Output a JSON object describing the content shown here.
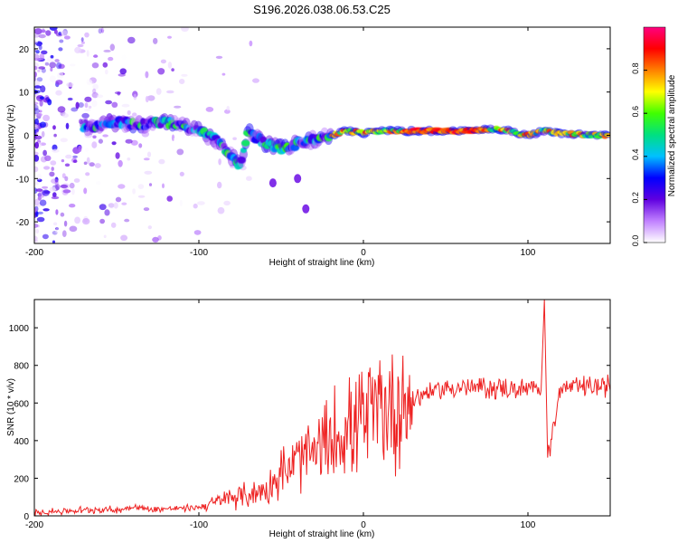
{
  "title": "S196.2026.038.06.53.C25",
  "chart_data": [
    {
      "type": "heatmap",
      "xlabel": "Height of straight line (km)",
      "ylabel": "Frequency (Hz)",
      "xlim": [
        -200,
        150
      ],
      "ylim": [
        -25,
        25
      ],
      "xticks": [
        -200,
        -100,
        0,
        100
      ],
      "yticks": [
        -20,
        -10,
        0,
        10,
        20
      ],
      "colorbar": {
        "label": "Normalized spectral amplitude",
        "range": [
          0,
          1
        ],
        "ticks": [
          "0.0",
          "0.2",
          "0.4",
          "0.6",
          "0.8"
        ],
        "colors": [
          "#ffffff",
          "#c080ff",
          "#6000e0",
          "#0000ff",
          "#00c0ff",
          "#00e080",
          "#40ff00",
          "#ffff00",
          "#ff8000",
          "#ff0000",
          "#ff0080"
        ]
      },
      "ridge": {
        "x": [
          -165,
          -150,
          -135,
          -120,
          -110,
          -100,
          -90,
          -80,
          -75,
          -70,
          -60,
          -50,
          -40,
          -30,
          -20,
          -10,
          0,
          10,
          20,
          40,
          60,
          80,
          90,
          100,
          110,
          120,
          140,
          150
        ],
        "y": [
          2,
          3,
          2.5,
          3,
          2.5,
          1,
          -1,
          -5,
          -7,
          1,
          -2,
          -3,
          -2,
          -1,
          0,
          1,
          0.5,
          1,
          1,
          1,
          1,
          1.5,
          1,
          0,
          1,
          0.5,
          0,
          0
        ]
      },
      "side_blobs": [
        {
          "x": -40,
          "y": -10
        },
        {
          "x": -35,
          "y": -17
        },
        {
          "x": -55,
          "y": -11
        }
      ]
    },
    {
      "type": "line",
      "xlabel": "Height of straight line (km)",
      "ylabel": "SNR (10 * v/v)",
      "xlim": [
        -200,
        150
      ],
      "ylim": [
        0,
        1150
      ],
      "xticks": [
        -200,
        -100,
        0,
        100
      ],
      "yticks": [
        0,
        200,
        400,
        600,
        800,
        1000
      ],
      "color": "#ee2222",
      "series": {
        "x": [
          -200,
          -180,
          -160,
          -150,
          -140,
          -130,
          -110,
          -100,
          -90,
          -80,
          -70,
          -60,
          -50,
          -40,
          -30,
          -20,
          -10,
          0,
          10,
          20,
          30,
          40,
          50,
          60,
          80,
          100,
          108,
          110,
          112,
          120,
          150
        ],
        "y": [
          20,
          25,
          35,
          30,
          50,
          35,
          40,
          45,
          70,
          100,
          110,
          140,
          220,
          290,
          330,
          400,
          460,
          520,
          560,
          580,
          620,
          660,
          680,
          680,
          680,
          670,
          670,
          1150,
          310,
          680,
          690
        ]
      }
    }
  ]
}
